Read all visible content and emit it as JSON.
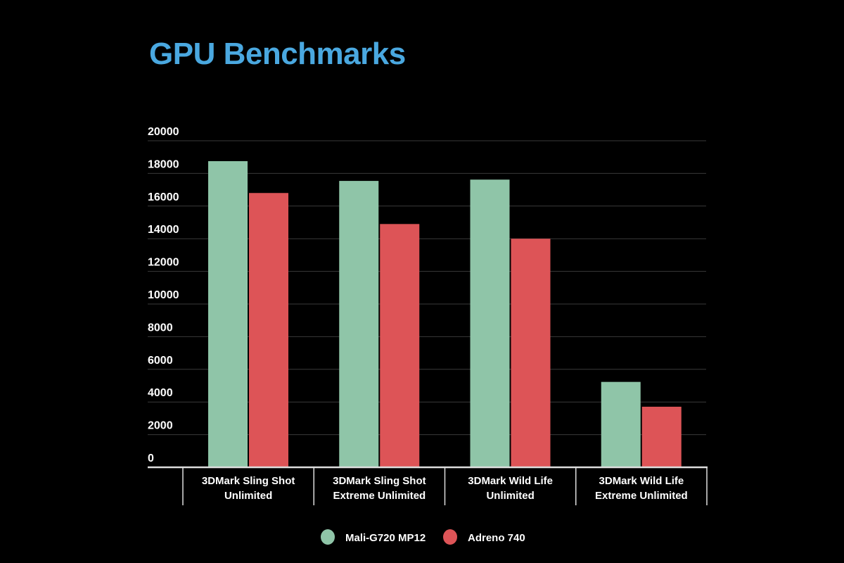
{
  "chart_data": {
    "type": "bar",
    "title": "GPU Benchmarks",
    "categories": [
      [
        "3DMark Sling Shot",
        "Unlimited"
      ],
      [
        "3DMark Sling Shot",
        "Extreme Unlimited"
      ],
      [
        "3DMark Wild Life",
        "Unlimited"
      ],
      [
        "3DMark Wild Life",
        "Extreme Unlimited"
      ]
    ],
    "series": [
      {
        "name": "Mali-G720 MP12",
        "color": "#8fc5a8",
        "values": [
          18750,
          17540,
          17620,
          5230
        ]
      },
      {
        "name": "Adreno 740",
        "color": "#dd5457",
        "values": [
          16800,
          14900,
          14000,
          3710
        ]
      }
    ],
    "ylim": [
      0,
      20000
    ],
    "yticks": [
      0,
      2000,
      4000,
      6000,
      8000,
      10000,
      12000,
      14000,
      16000,
      18000,
      20000
    ],
    "grid": true,
    "legend": "bottom-center"
  }
}
